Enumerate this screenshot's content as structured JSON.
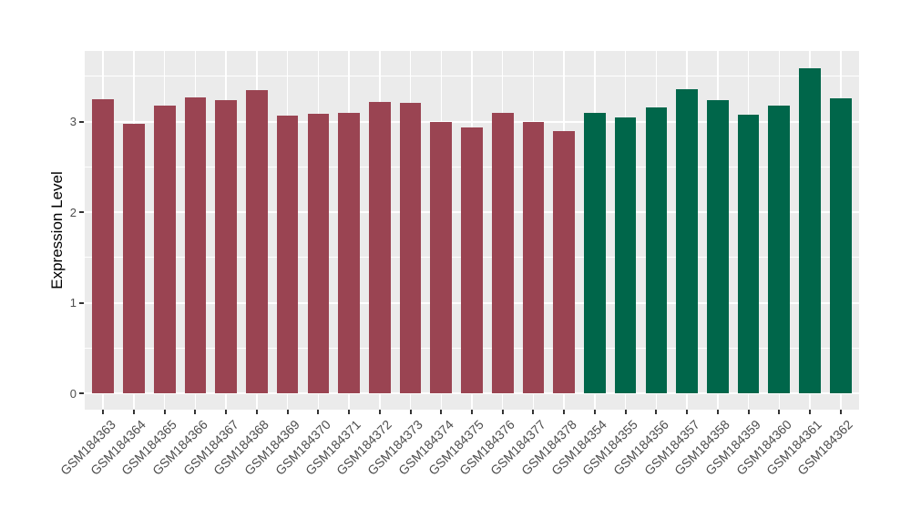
{
  "chart_data": {
    "type": "bar",
    "title": "",
    "xlabel": "",
    "ylabel": "Expression Level",
    "categories": [
      "GSM184363",
      "GSM184364",
      "GSM184365",
      "GSM184366",
      "GSM184367",
      "GSM184368",
      "GSM184369",
      "GSM184370",
      "GSM184371",
      "GSM184372",
      "GSM184373",
      "GSM184374",
      "GSM184375",
      "GSM184376",
      "GSM184377",
      "GSM184378",
      "GSM184354",
      "GSM184355",
      "GSM184356",
      "GSM184357",
      "GSM184358",
      "GSM184359",
      "GSM184360",
      "GSM184361",
      "GSM184362"
    ],
    "values": [
      3.25,
      2.98,
      3.18,
      3.27,
      3.24,
      3.35,
      3.07,
      3.09,
      3.1,
      3.22,
      3.21,
      3.0,
      2.94,
      3.1,
      3.0,
      2.9,
      3.1,
      3.05,
      3.16,
      3.36,
      3.24,
      3.08,
      3.18,
      3.59,
      3.26
    ],
    "groups": [
      0,
      0,
      0,
      0,
      0,
      0,
      0,
      0,
      0,
      0,
      0,
      0,
      0,
      0,
      0,
      0,
      1,
      1,
      1,
      1,
      1,
      1,
      1,
      1,
      1
    ],
    "group_colors": [
      "#9A4452",
      "#00664A"
    ],
    "ylim": [
      -0.18,
      3.78
    ],
    "yticks": [
      0,
      1,
      2,
      3
    ],
    "ytick_labels": [
      "0",
      "1",
      "2",
      "3"
    ],
    "minor_gridlines": [
      0.5,
      1.5,
      2.5,
      3.5
    ],
    "panel_background": "#EBEBEB",
    "gridline_color": "#FFFFFF",
    "bar_width_frac": 0.7,
    "x_label_angle": -45,
    "legend": "none",
    "grid": "on"
  }
}
